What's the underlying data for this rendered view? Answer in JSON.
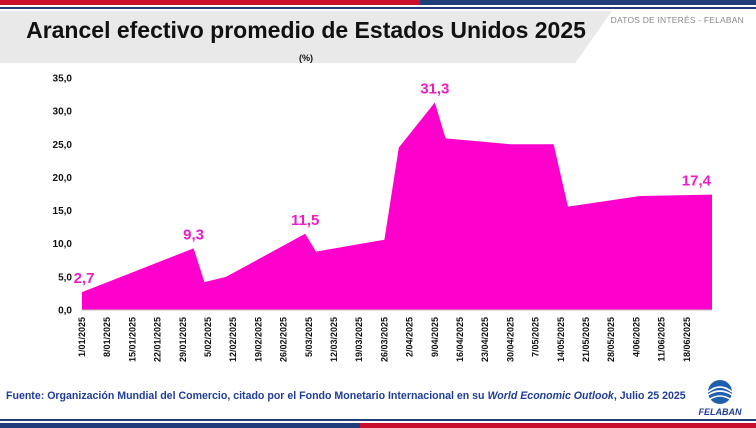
{
  "header": {
    "title": "Arancel efectivo promedio de Estados Unidos 2025",
    "unit": "(%)",
    "tag": "DATOS DE INTERÉS - FELABAN"
  },
  "footer": {
    "source_prefix": "Fuente: Organización Mundial del Comercio, citado por el Fondo Monetario Internacional en su ",
    "source_italic": "World Economic Outlook",
    "source_suffix": ", Julio 25 2025",
    "logo_text": "FELABAN"
  },
  "colors": {
    "area": "#ff00cc",
    "label": "#ee1cc6"
  },
  "chart_data": {
    "type": "area",
    "title": "Arancel efectivo promedio de Estados Unidos 2025",
    "ylabel": "(%)",
    "ylim": [
      0,
      35
    ],
    "yticks": [
      "0,0",
      "5,0",
      "10,0",
      "15,0",
      "20,0",
      "25,0",
      "30,0",
      "35,0"
    ],
    "x_tick_labels": [
      "1/01/2025",
      "8/01/2025",
      "15/01/2025",
      "22/01/2025",
      "29/01/2025",
      "5/02/2025",
      "12/02/2025",
      "19/02/2025",
      "26/02/2025",
      "5/03/2025",
      "12/03/2025",
      "19/03/2025",
      "26/03/2025",
      "2/04/2025",
      "9/04/2025",
      "16/04/2025",
      "23/04/2025",
      "30/04/2025",
      "7/05/2025",
      "14/05/2025",
      "21/05/2025",
      "28/05/2025",
      "4/06/2025",
      "11/06/2025",
      "18/06/2025"
    ],
    "points": [
      {
        "day": 0,
        "value": 2.7
      },
      {
        "day": 31,
        "value": 9.3
      },
      {
        "day": 34,
        "value": 4.2
      },
      {
        "day": 40,
        "value": 5.0
      },
      {
        "day": 62,
        "value": 11.5
      },
      {
        "day": 65,
        "value": 8.8
      },
      {
        "day": 84,
        "value": 10.6
      },
      {
        "day": 88,
        "value": 24.5
      },
      {
        "day": 98,
        "value": 31.3
      },
      {
        "day": 101,
        "value": 25.9
      },
      {
        "day": 119,
        "value": 25.0
      },
      {
        "day": 131,
        "value": 25.0
      },
      {
        "day": 135,
        "value": 15.6
      },
      {
        "day": 155,
        "value": 17.2
      },
      {
        "day": 175,
        "value": 17.4
      }
    ],
    "data_labels": [
      {
        "day": 0,
        "value": 2.7,
        "text": "2,7"
      },
      {
        "day": 31,
        "value": 9.3,
        "text": "9,3"
      },
      {
        "day": 62,
        "value": 11.5,
        "text": "11,5"
      },
      {
        "day": 98,
        "value": 31.3,
        "text": "31,3"
      },
      {
        "day": 175,
        "value": 17.4,
        "text": "17,4"
      }
    ]
  }
}
